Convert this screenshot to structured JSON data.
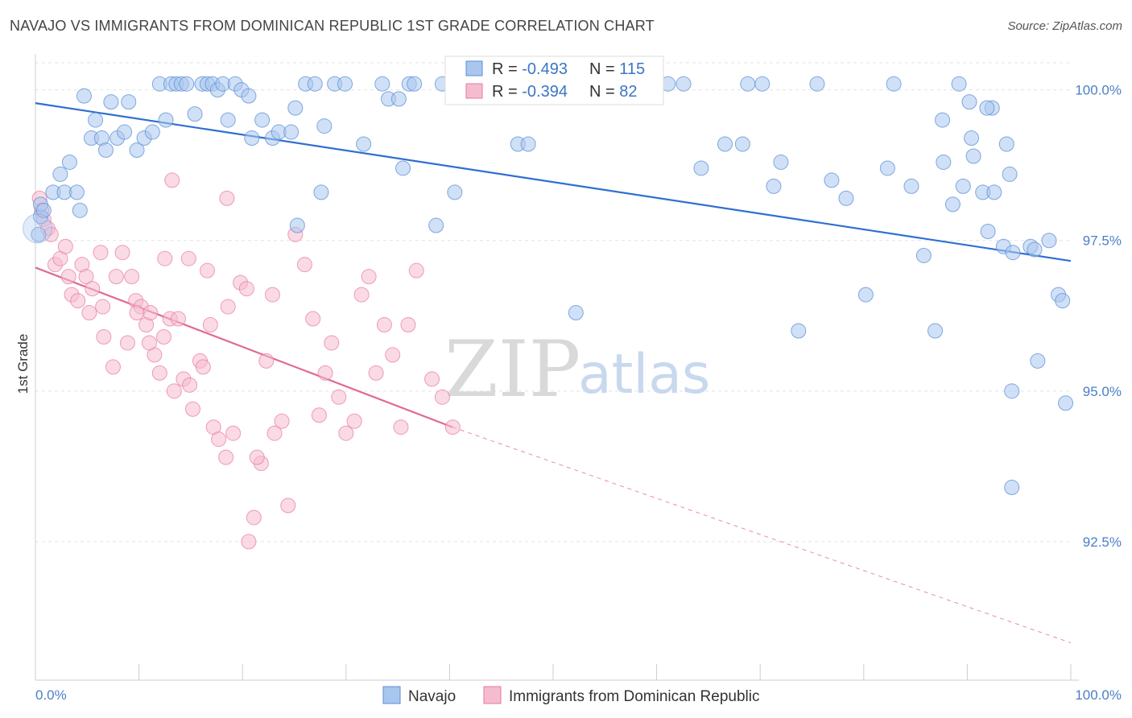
{
  "title": "NAVAJO VS IMMIGRANTS FROM DOMINICAN REPUBLIC 1ST GRADE CORRELATION CHART",
  "source": "Source: ZipAtlas.com",
  "watermark": {
    "part1": "ZIP",
    "part2": "atlas"
  },
  "legend_top": {
    "rows": [
      {
        "r_label": "R = ",
        "r_value": "-0.493",
        "n_label": "N = ",
        "n_value": "115"
      },
      {
        "r_label": "R = ",
        "r_value": "-0.394",
        "n_label": "N = ",
        "n_value": "82"
      }
    ]
  },
  "chart_data": {
    "type": "scatter",
    "title": "NAVAJO VS IMMIGRANTS FROM DOMINICAN REPUBLIC 1ST GRADE CORRELATION CHART",
    "xlabel": "",
    "ylabel": "1st Grade",
    "xlim": [
      0,
      100
    ],
    "ylim": [
      90.2,
      100.45
    ],
    "x_tick_labels": [
      "0.0%",
      "100.0%"
    ],
    "y_ticks": [
      {
        "value": 100.0,
        "label": "100.0%"
      },
      {
        "value": 97.5,
        "label": "97.5%"
      },
      {
        "value": 95.0,
        "label": "95.0%"
      },
      {
        "value": 92.5,
        "label": "92.5%"
      }
    ],
    "grid": true,
    "legend_position": "bottom",
    "colors": {
      "navajo": "#5b8fd6",
      "navajo_fill": "#a9c6ee",
      "dominican": "#e8779b",
      "dominican_fill": "#f5bcd0"
    },
    "series": [
      {
        "name": "Navajo",
        "r": -0.493,
        "n": 115,
        "trend": {
          "x": [
            0,
            100
          ],
          "y": [
            99.78,
            97.16
          ]
        },
        "points": [
          [
            0.3,
            97.6
          ],
          [
            0.5,
            97.9
          ],
          [
            0.5,
            98.1
          ],
          [
            0.8,
            98.0
          ],
          [
            1.7,
            98.3
          ],
          [
            2.4,
            98.6
          ],
          [
            2.8,
            98.3
          ],
          [
            3.3,
            98.8
          ],
          [
            4.0,
            98.3
          ],
          [
            4.3,
            98.0
          ],
          [
            4.7,
            99.9
          ],
          [
            5.4,
            99.2
          ],
          [
            5.8,
            99.5
          ],
          [
            6.4,
            99.2
          ],
          [
            6.8,
            99.0
          ],
          [
            7.3,
            99.8
          ],
          [
            7.9,
            99.2
          ],
          [
            8.6,
            99.3
          ],
          [
            9.0,
            99.8
          ],
          [
            9.8,
            99.0
          ],
          [
            10.5,
            99.2
          ],
          [
            11.3,
            99.3
          ],
          [
            12.0,
            100.1
          ],
          [
            12.6,
            99.5
          ],
          [
            13.1,
            100.1
          ],
          [
            13.6,
            100.1
          ],
          [
            14.1,
            100.1
          ],
          [
            14.6,
            100.1
          ],
          [
            15.4,
            99.6
          ],
          [
            16.1,
            100.1
          ],
          [
            16.6,
            100.1
          ],
          [
            17.1,
            100.1
          ],
          [
            17.6,
            100.0
          ],
          [
            18.1,
            100.1
          ],
          [
            18.6,
            99.5
          ],
          [
            19.3,
            100.1
          ],
          [
            19.9,
            100.0
          ],
          [
            20.6,
            99.9
          ],
          [
            20.9,
            99.2
          ],
          [
            21.9,
            99.5
          ],
          [
            22.9,
            99.2
          ],
          [
            23.5,
            99.3
          ],
          [
            24.7,
            99.3
          ],
          [
            25.1,
            99.7
          ],
          [
            25.3,
            97.75
          ],
          [
            26.1,
            100.1
          ],
          [
            27.0,
            100.1
          ],
          [
            27.6,
            98.3
          ],
          [
            27.9,
            99.4
          ],
          [
            28.9,
            100.1
          ],
          [
            29.9,
            100.1
          ],
          [
            31.7,
            99.1
          ],
          [
            33.5,
            100.1
          ],
          [
            34.1,
            99.85
          ],
          [
            35.1,
            99.85
          ],
          [
            35.5,
            98.7
          ],
          [
            36.1,
            100.1
          ],
          [
            36.6,
            100.1
          ],
          [
            38.7,
            97.75
          ],
          [
            39.3,
            100.1
          ],
          [
            40.5,
            98.3
          ],
          [
            46.6,
            99.1
          ],
          [
            46.8,
            100.05
          ],
          [
            47.6,
            99.1
          ],
          [
            52.2,
            96.3
          ],
          [
            55.9,
            100.1
          ],
          [
            57.6,
            100.1
          ],
          [
            58.8,
            100.1
          ],
          [
            59.5,
            100.1
          ],
          [
            61.1,
            100.1
          ],
          [
            64.3,
            98.7
          ],
          [
            66.6,
            99.1
          ],
          [
            68.3,
            99.1
          ],
          [
            68.8,
            100.1
          ],
          [
            70.2,
            100.1
          ],
          [
            72.0,
            98.8
          ],
          [
            71.3,
            98.4
          ],
          [
            73.7,
            96.0
          ],
          [
            75.5,
            100.1
          ],
          [
            76.9,
            98.5
          ],
          [
            78.3,
            98.2
          ],
          [
            80.2,
            96.6
          ],
          [
            82.3,
            98.7
          ],
          [
            82.9,
            100.1
          ],
          [
            84.6,
            98.4
          ],
          [
            85.8,
            97.25
          ],
          [
            86.9,
            96.0
          ],
          [
            87.6,
            99.5
          ],
          [
            87.7,
            98.8
          ],
          [
            88.6,
            98.1
          ],
          [
            89.2,
            100.1
          ],
          [
            89.6,
            98.4
          ],
          [
            90.2,
            99.8
          ],
          [
            90.6,
            98.9
          ],
          [
            91.5,
            98.3
          ],
          [
            92.0,
            97.65
          ],
          [
            92.6,
            98.3
          ],
          [
            93.5,
            97.4
          ],
          [
            94.1,
            98.6
          ],
          [
            94.4,
            97.3
          ],
          [
            94.3,
            95.0
          ],
          [
            96.1,
            97.4
          ],
          [
            94.3,
            93.4
          ],
          [
            96.5,
            97.35
          ],
          [
            96.8,
            95.5
          ],
          [
            97.9,
            97.5
          ],
          [
            98.8,
            96.6
          ],
          [
            99.2,
            96.5
          ],
          [
            99.5,
            94.8
          ],
          [
            92.4,
            99.7
          ],
          [
            91.9,
            99.7
          ],
          [
            93.8,
            99.1
          ],
          [
            90.4,
            99.2
          ],
          [
            48.1,
            100.1
          ],
          [
            62.6,
            100.1
          ]
        ]
      },
      {
        "name": "Immigrants from Dominican Republic",
        "r": -0.394,
        "n": 82,
        "trend": {
          "x": [
            0,
            40.3
          ],
          "y": [
            97.05,
            94.4
          ]
        },
        "trend_extension": {
          "x": [
            40.3,
            100
          ],
          "y": [
            94.4,
            90.82
          ]
        },
        "points": [
          [
            0.4,
            98.2
          ],
          [
            0.6,
            98.0
          ],
          [
            0.8,
            97.85
          ],
          [
            1.2,
            97.7
          ],
          [
            1.5,
            97.6
          ],
          [
            1.9,
            97.1
          ],
          [
            2.4,
            97.2
          ],
          [
            2.9,
            97.4
          ],
          [
            3.2,
            96.9
          ],
          [
            3.5,
            96.6
          ],
          [
            4.1,
            96.5
          ],
          [
            4.5,
            97.1
          ],
          [
            4.9,
            96.9
          ],
          [
            5.5,
            96.7
          ],
          [
            6.3,
            97.3
          ],
          [
            6.5,
            96.4
          ],
          [
            7.5,
            95.4
          ],
          [
            7.8,
            96.9
          ],
          [
            8.4,
            97.3
          ],
          [
            8.9,
            95.8
          ],
          [
            9.3,
            96.9
          ],
          [
            9.7,
            96.5
          ],
          [
            10.2,
            96.4
          ],
          [
            10.7,
            96.1
          ],
          [
            11.1,
            96.3
          ],
          [
            11.5,
            95.6
          ],
          [
            12.0,
            95.3
          ],
          [
            12.4,
            95.9
          ],
          [
            13.0,
            96.2
          ],
          [
            13.4,
            95.0
          ],
          [
            13.8,
            96.2
          ],
          [
            14.3,
            95.2
          ],
          [
            14.9,
            95.1
          ],
          [
            15.2,
            94.7
          ],
          [
            15.9,
            95.5
          ],
          [
            16.2,
            95.4
          ],
          [
            16.9,
            96.1
          ],
          [
            17.2,
            94.4
          ],
          [
            17.7,
            94.2
          ],
          [
            18.4,
            93.9
          ],
          [
            18.6,
            96.4
          ],
          [
            19.1,
            94.3
          ],
          [
            19.8,
            96.8
          ],
          [
            20.6,
            92.5
          ],
          [
            21.1,
            92.9
          ],
          [
            21.8,
            93.8
          ],
          [
            22.3,
            95.5
          ],
          [
            23.1,
            94.3
          ],
          [
            23.8,
            94.5
          ],
          [
            24.4,
            93.1
          ],
          [
            25.1,
            97.6
          ],
          [
            26.0,
            97.1
          ],
          [
            26.8,
            96.2
          ],
          [
            27.4,
            94.6
          ],
          [
            28.0,
            95.3
          ],
          [
            28.6,
            95.8
          ],
          [
            29.3,
            94.9
          ],
          [
            30.0,
            94.3
          ],
          [
            30.8,
            94.5
          ],
          [
            31.5,
            96.6
          ],
          [
            32.2,
            96.9
          ],
          [
            32.9,
            95.3
          ],
          [
            33.7,
            96.1
          ],
          [
            34.5,
            95.6
          ],
          [
            35.3,
            94.4
          ],
          [
            36.0,
            96.1
          ],
          [
            36.8,
            97.0
          ],
          [
            38.3,
            95.2
          ],
          [
            39.3,
            94.9
          ],
          [
            40.3,
            94.4
          ],
          [
            21.4,
            93.9
          ],
          [
            14.8,
            97.2
          ],
          [
            18.5,
            98.2
          ],
          [
            16.6,
            97.0
          ],
          [
            13.2,
            98.5
          ],
          [
            20.4,
            96.7
          ],
          [
            22.9,
            96.6
          ],
          [
            12.5,
            97.2
          ],
          [
            11.0,
            95.8
          ],
          [
            9.8,
            96.3
          ],
          [
            6.6,
            95.9
          ],
          [
            5.2,
            96.3
          ]
        ]
      }
    ]
  },
  "y_axis_title": "1st Grade",
  "x_axis": {
    "left_label": "0.0%",
    "right_label": "100.0%"
  },
  "legend_bottom": {
    "items": [
      "Navajo",
      "Immigrants from Dominican Republic"
    ]
  }
}
